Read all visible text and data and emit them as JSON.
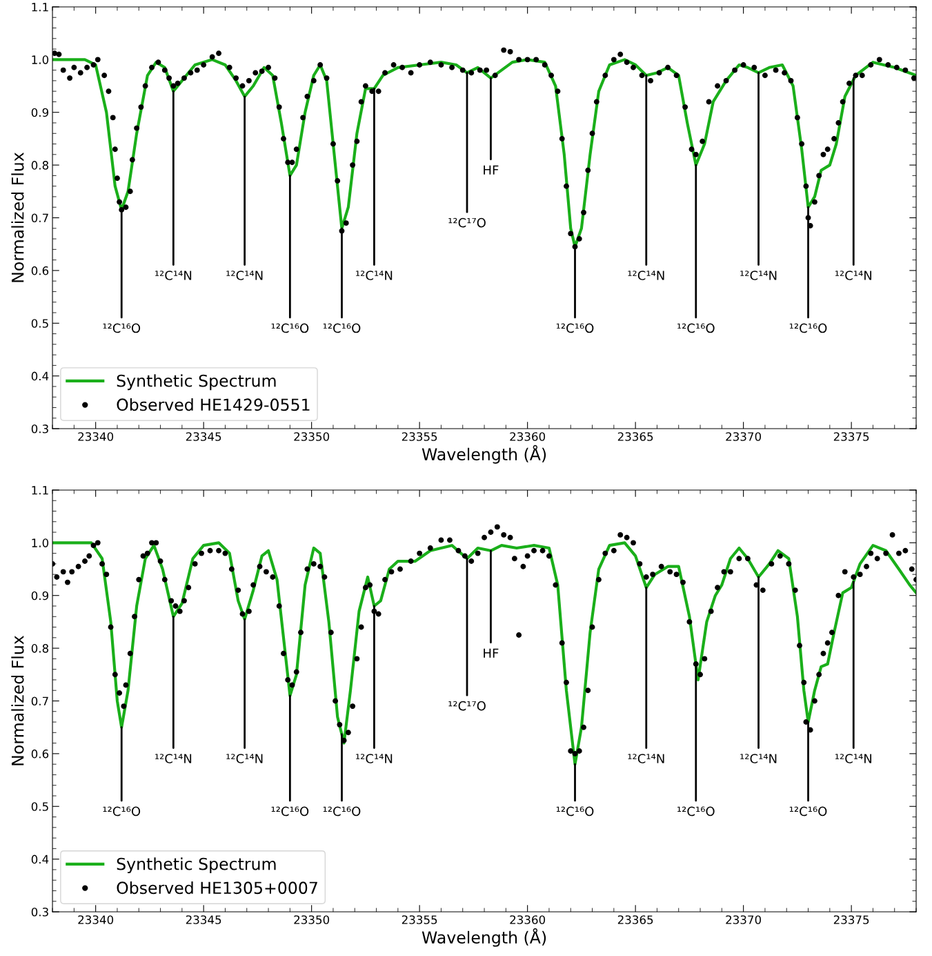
{
  "chart_data": [
    {
      "type": "line",
      "xlabel": "Wavelength (Å)",
      "ylabel": "Normalized Flux",
      "xlim": [
        23338,
        23378
      ],
      "ylim": [
        0.3,
        1.1
      ],
      "xticks": [
        23340,
        23345,
        23350,
        23355,
        23360,
        23365,
        23370,
        23375
      ],
      "yticks": [
        0.3,
        0.4,
        0.5,
        0.6,
        0.7,
        0.8,
        0.9,
        {
          "value": 1,
          "label": "1.0"
        },
        1.1
      ],
      "grid": false,
      "legend": "bottom left",
      "series": [
        {
          "name": "Synthetic Spectrum",
          "color": "#1aaf1a",
          "marker": "none",
          "line_style": "solid",
          "x": [
            23338,
            23339.5,
            23340.0,
            23340.5,
            23340.9,
            23341.2,
            23341.5,
            23341.9,
            23342.4,
            23342.8,
            23343.2,
            23343.6,
            23344.0,
            23344.6,
            23345.4,
            23346.0,
            23346.5,
            23346.9,
            23347.3,
            23347.8,
            23348.2,
            23348.6,
            23349.0,
            23349.3,
            23349.7,
            23350.1,
            23350.4,
            23350.7,
            23351.1,
            23351.4,
            23351.7,
            23352.1,
            23352.5,
            23352.9,
            23353.3,
            23354,
            23355,
            23356,
            23356.7,
            23357.2,
            23357.7,
            23358.3,
            23358.8,
            23359.3,
            23360,
            23360.8,
            23361.3,
            23361.7,
            23362.0,
            23362.2,
            23362.5,
            23362.9,
            23363.3,
            23363.8,
            23364.5,
            23365.0,
            23365.5,
            23366.0,
            23366.5,
            23367.0,
            23367.4,
            23367.8,
            23368.2,
            23368.6,
            23369.2,
            23369.8,
            23370.2,
            23370.7,
            23371.2,
            23371.8,
            23372.3,
            23372.7,
            23373.0,
            23373.3,
            23373.6,
            23374.0,
            23374.3,
            23374.7,
            23375.2,
            23376,
            23377,
            23378
          ],
          "values": [
            1.0,
            1.0,
            0.99,
            0.9,
            0.76,
            0.715,
            0.75,
            0.86,
            0.97,
            0.995,
            0.985,
            0.94,
            0.96,
            0.99,
            1.0,
            0.99,
            0.96,
            0.93,
            0.95,
            0.985,
            0.97,
            0.88,
            0.78,
            0.8,
            0.9,
            0.97,
            0.99,
            0.96,
            0.8,
            0.68,
            0.72,
            0.86,
            0.945,
            0.945,
            0.97,
            0.985,
            0.99,
            0.995,
            0.99,
            0.975,
            0.985,
            0.965,
            0.98,
            0.995,
            1.0,
            0.995,
            0.95,
            0.82,
            0.68,
            0.645,
            0.68,
            0.82,
            0.94,
            0.99,
            1.0,
            0.99,
            0.97,
            0.975,
            0.985,
            0.97,
            0.88,
            0.8,
            0.84,
            0.92,
            0.96,
            0.99,
            0.985,
            0.975,
            0.985,
            0.99,
            0.95,
            0.83,
            0.72,
            0.74,
            0.79,
            0.8,
            0.84,
            0.93,
            0.97,
            0.995,
            0.985,
            0.97
          ]
        },
        {
          "name": "Observed HE1429-0551",
          "type": "scatter",
          "color": "#000000",
          "marker": "circle",
          "x": [
            23338.1,
            23338.3,
            23338.5,
            23338.8,
            23339.0,
            23339.3,
            23339.6,
            23339.9,
            23340.1,
            23340.4,
            23340.6,
            23340.8,
            23340.9,
            23341.0,
            23341.1,
            23341.2,
            23341.4,
            23341.6,
            23341.7,
            23341.9,
            23342.1,
            23342.3,
            23342.6,
            23342.9,
            23343.2,
            23343.4,
            23343.6,
            23343.8,
            23344.1,
            23344.4,
            23344.7,
            23345.0,
            23345.4,
            23345.7,
            23346.2,
            23346.5,
            23346.8,
            23347.1,
            23347.4,
            23347.7,
            23348.0,
            23348.3,
            23348.5,
            23348.7,
            23348.9,
            23349.1,
            23349.3,
            23349.6,
            23349.8,
            23350.1,
            23350.4,
            23350.7,
            23351.0,
            23351.2,
            23351.4,
            23351.6,
            23351.9,
            23352.1,
            23352.3,
            23352.5,
            23352.8,
            23353.1,
            23353.4,
            23353.8,
            23354.2,
            23354.6,
            23355.0,
            23355.5,
            23356.0,
            23356.5,
            23357.0,
            23357.4,
            23357.8,
            23358.1,
            23358.5,
            23358.9,
            23359.2,
            23359.6,
            23360.0,
            23360.4,
            23360.8,
            23361.1,
            23361.4,
            23361.6,
            23361.8,
            23362.0,
            23362.2,
            23362.4,
            23362.6,
            23362.8,
            23363.0,
            23363.2,
            23363.6,
            23364.0,
            23364.3,
            23364.6,
            23364.9,
            23365.3,
            23365.7,
            23366.1,
            23366.5,
            23366.9,
            23367.3,
            23367.6,
            23367.8,
            23368.1,
            23368.4,
            23368.8,
            23369.2,
            23369.6,
            23370.0,
            23370.5,
            23371.0,
            23371.5,
            23371.9,
            23372.2,
            23372.5,
            23372.7,
            23372.9,
            23373.0,
            23373.1,
            23373.3,
            23373.5,
            23373.7,
            23373.9,
            23374.2,
            23374.4,
            23374.6,
            23374.9,
            23375.2,
            23375.5,
            23375.9,
            23376.3,
            23376.7,
            23377.1,
            23377.5,
            23377.9
          ],
          "values": [
            1.012,
            1.01,
            0.98,
            0.965,
            0.985,
            0.975,
            0.985,
            0.99,
            1.0,
            0.97,
            0.94,
            0.89,
            0.83,
            0.775,
            0.73,
            0.715,
            0.72,
            0.75,
            0.81,
            0.87,
            0.91,
            0.95,
            0.985,
            0.995,
            0.98,
            0.965,
            0.95,
            0.955,
            0.965,
            0.975,
            0.98,
            0.99,
            1.005,
            1.012,
            0.985,
            0.965,
            0.95,
            0.96,
            0.975,
            0.978,
            0.985,
            0.965,
            0.91,
            0.85,
            0.805,
            0.805,
            0.83,
            0.89,
            0.93,
            0.96,
            0.99,
            0.965,
            0.84,
            0.77,
            0.675,
            0.69,
            0.8,
            0.845,
            0.92,
            0.95,
            0.94,
            0.94,
            0.975,
            0.99,
            0.985,
            0.975,
            0.99,
            0.995,
            0.99,
            0.985,
            0.98,
            0.975,
            0.98,
            0.98,
            0.97,
            1.018,
            1.015,
            1.0,
            1.0,
            1.0,
            0.99,
            0.97,
            0.94,
            0.85,
            0.76,
            0.67,
            0.645,
            0.66,
            0.71,
            0.79,
            0.86,
            0.92,
            0.97,
            1.0,
            1.01,
            0.995,
            0.985,
            0.97,
            0.96,
            0.975,
            0.985,
            0.97,
            0.91,
            0.83,
            0.82,
            0.845,
            0.92,
            0.95,
            0.96,
            0.98,
            0.99,
            0.985,
            0.97,
            0.98,
            0.975,
            0.96,
            0.89,
            0.84,
            0.76,
            0.7,
            0.685,
            0.73,
            0.78,
            0.82,
            0.83,
            0.85,
            0.88,
            0.92,
            0.955,
            0.97,
            0.97,
            0.99,
            1.0,
            0.99,
            0.985,
            0.98,
            0.965
          ]
        }
      ],
      "annotations": [
        {
          "text": "¹²C¹⁶O",
          "x": 23341.2,
          "y": 0.715
        },
        {
          "text": "¹²C¹⁴N",
          "x": 23343.6,
          "y": 0.94
        },
        {
          "text": "¹²C¹⁴N",
          "x": 23346.9,
          "y": 0.93
        },
        {
          "text": "¹²C¹⁶O",
          "x": 23349.0,
          "y": 0.78
        },
        {
          "text": "¹²C¹⁶O",
          "x": 23351.4,
          "y": 0.68
        },
        {
          "text": "¹²C¹⁴N",
          "x": 23352.9,
          "y": 0.945
        },
        {
          "text": "¹²C¹⁷O",
          "x": 23357.2,
          "y": 0.975
        },
        {
          "text": "HF",
          "x": 23358.3,
          "y": 0.965
        },
        {
          "text": "¹²C¹⁶O",
          "x": 23362.2,
          "y": 0.645
        },
        {
          "text": "¹²C¹⁴N",
          "x": 23365.5,
          "y": 0.97
        },
        {
          "text": "¹²C¹⁶O",
          "x": 23367.8,
          "y": 0.8
        },
        {
          "text": "¹²C¹⁴N",
          "x": 23370.7,
          "y": 0.975
        },
        {
          "text": "¹²C¹⁶O",
          "x": 23373.0,
          "y": 0.72
        },
        {
          "text": "¹²C¹⁴N",
          "x": 23375.1,
          "y": 0.965
        }
      ]
    },
    {
      "type": "line",
      "xlabel": "Wavelength (Å)",
      "ylabel": "Normalized Flux",
      "xlim": [
        23338,
        23378
      ],
      "ylim": [
        0.3,
        1.1
      ],
      "xticks": [
        23340,
        23345,
        23350,
        23355,
        23360,
        23365,
        23370,
        23375
      ],
      "yticks": [
        0.3,
        0.4,
        0.5,
        0.6,
        0.7,
        0.8,
        0.9,
        {
          "value": 1,
          "label": "1.0"
        },
        1.1
      ],
      "grid": false,
      "legend": "bottom left",
      "series": [
        {
          "name": "Synthetic Spectrum",
          "color": "#1aaf1a",
          "marker": "none",
          "line_style": "solid",
          "x": [
            23338,
            23339.8,
            23340.3,
            23340.7,
            23341.0,
            23341.2,
            23341.5,
            23341.9,
            23342.3,
            23342.7,
            23343.1,
            23343.6,
            23344.0,
            23344.5,
            23345.0,
            23345.7,
            23346.2,
            23346.6,
            23346.9,
            23347.3,
            23347.7,
            23348.0,
            23348.4,
            23348.7,
            23349.0,
            23349.3,
            23349.7,
            23350.1,
            23350.4,
            23350.8,
            23351.2,
            23351.5,
            23351.8,
            23352.2,
            23352.6,
            23352.9,
            23353.2,
            23353.6,
            23354.0,
            23354.8,
            23355.5,
            23356.5,
            23357.2,
            23357.7,
            23358.3,
            23358.8,
            23359.5,
            23360.3,
            23361.0,
            23361.4,
            23361.8,
            23362.2,
            23362.5,
            23362.9,
            23363.3,
            23363.8,
            23364.5,
            23365.0,
            23365.5,
            23365.9,
            23366.5,
            23367.0,
            23367.5,
            23367.9,
            23368.3,
            23368.7,
            23369.0,
            23369.4,
            23369.8,
            23370.2,
            23370.7,
            23371.2,
            23371.6,
            23372.1,
            23372.5,
            23372.8,
            23373.0,
            23373.3,
            23373.6,
            23373.9,
            23374.2,
            23374.6,
            23375.0,
            23375.4,
            23376.0,
            23376.6,
            23377.2,
            23377.7,
            23378
          ],
          "values": [
            1.0,
            1.0,
            0.97,
            0.85,
            0.7,
            0.65,
            0.72,
            0.88,
            0.97,
            0.995,
            0.95,
            0.86,
            0.885,
            0.97,
            0.995,
            1.0,
            0.98,
            0.89,
            0.855,
            0.91,
            0.975,
            0.985,
            0.93,
            0.82,
            0.71,
            0.75,
            0.92,
            0.99,
            0.98,
            0.85,
            0.67,
            0.62,
            0.72,
            0.87,
            0.935,
            0.88,
            0.89,
            0.95,
            0.965,
            0.965,
            0.985,
            0.995,
            0.97,
            0.99,
            0.985,
            0.995,
            0.99,
            0.995,
            0.99,
            0.92,
            0.72,
            0.58,
            0.65,
            0.83,
            0.95,
            0.995,
            1.0,
            0.975,
            0.915,
            0.94,
            0.955,
            0.955,
            0.86,
            0.74,
            0.85,
            0.9,
            0.92,
            0.97,
            0.99,
            0.97,
            0.935,
            0.96,
            0.985,
            0.97,
            0.86,
            0.72,
            0.66,
            0.72,
            0.765,
            0.77,
            0.83,
            0.905,
            0.915,
            0.96,
            0.995,
            0.985,
            0.95,
            0.92,
            0.905
          ]
        },
        {
          "name": "Observed HE1305+0007",
          "type": "scatter",
          "color": "#000000",
          "marker": "circle",
          "x": [
            23338.0,
            23338.2,
            23338.5,
            23338.7,
            23338.9,
            23339.2,
            23339.5,
            23339.7,
            23339.9,
            23340.1,
            23340.3,
            23340.5,
            23340.7,
            23340.9,
            23341.1,
            23341.3,
            23341.4,
            23341.6,
            23341.8,
            23342.0,
            23342.2,
            23342.4,
            23342.6,
            23342.8,
            23343.0,
            23343.2,
            23343.5,
            23343.7,
            23343.9,
            23344.1,
            23344.3,
            23344.6,
            23344.9,
            23345.3,
            23345.7,
            23346.0,
            23346.3,
            23346.6,
            23346.8,
            23347.1,
            23347.3,
            23347.6,
            23347.9,
            23348.2,
            23348.5,
            23348.7,
            23348.9,
            23349.1,
            23349.3,
            23349.5,
            23349.8,
            23350.1,
            23350.4,
            23350.6,
            23350.9,
            23351.1,
            23351.3,
            23351.5,
            23351.7,
            23351.9,
            23352.1,
            23352.3,
            23352.5,
            23352.7,
            23352.9,
            23353.1,
            23353.4,
            23353.7,
            23354.1,
            23354.6,
            23355.0,
            23355.5,
            23356.0,
            23356.4,
            23356.8,
            23357.1,
            23357.4,
            23357.7,
            23358.0,
            23358.3,
            23358.6,
            23358.9,
            23359.2,
            23359.4,
            23359.6,
            23359.8,
            23360.0,
            23360.3,
            23360.7,
            23361.0,
            23361.3,
            23361.6,
            23361.8,
            23362.0,
            23362.2,
            23362.4,
            23362.6,
            23362.8,
            23363.0,
            23363.3,
            23363.6,
            23364.0,
            23364.3,
            23364.6,
            23364.9,
            23365.2,
            23365.5,
            23365.8,
            23366.2,
            23366.6,
            23366.9,
            23367.2,
            23367.5,
            23367.8,
            23368.0,
            23368.2,
            23368.5,
            23368.8,
            23369.1,
            23369.4,
            23369.8,
            23370.2,
            23370.6,
            23370.9,
            23371.3,
            23371.7,
            23372.1,
            23372.4,
            23372.6,
            23372.8,
            23372.9,
            23373.1,
            23373.3,
            23373.5,
            23373.7,
            23373.9,
            23374.1,
            23374.4,
            23374.7,
            23375.1,
            23375.4,
            23375.7,
            23375.9,
            23376.2,
            23376.6,
            23376.9,
            23377.2,
            23377.5,
            23377.8,
            23378.0
          ],
          "values": [
            0.96,
            0.935,
            0.945,
            0.925,
            0.945,
            0.955,
            0.965,
            0.975,
            0.995,
            1.0,
            0.96,
            0.94,
            0.84,
            0.75,
            0.715,
            0.69,
            0.73,
            0.79,
            0.86,
            0.93,
            0.975,
            0.98,
            1.0,
            1.0,
            0.965,
            0.93,
            0.89,
            0.88,
            0.87,
            0.89,
            0.915,
            0.96,
            0.98,
            0.985,
            0.985,
            0.98,
            0.95,
            0.91,
            0.865,
            0.87,
            0.92,
            0.955,
            0.945,
            0.935,
            0.88,
            0.79,
            0.74,
            0.73,
            0.755,
            0.83,
            0.95,
            0.96,
            0.955,
            0.935,
            0.83,
            0.7,
            0.655,
            0.625,
            0.64,
            0.69,
            0.78,
            0.84,
            0.915,
            0.92,
            0.87,
            0.865,
            0.93,
            0.945,
            0.95,
            0.965,
            0.98,
            0.99,
            1.005,
            1.005,
            0.985,
            0.975,
            0.965,
            0.98,
            1.01,
            1.02,
            1.03,
            1.015,
            1.01,
            0.97,
            0.825,
            0.955,
            0.975,
            0.985,
            0.985,
            0.975,
            0.92,
            0.81,
            0.735,
            0.605,
            0.6,
            0.605,
            0.65,
            0.72,
            0.84,
            0.93,
            0.98,
            0.985,
            1.015,
            1.01,
            1.0,
            0.96,
            0.935,
            0.94,
            0.955,
            0.945,
            0.94,
            0.925,
            0.85,
            0.77,
            0.75,
            0.78,
            0.87,
            0.915,
            0.945,
            0.945,
            0.97,
            0.97,
            0.92,
            0.91,
            0.96,
            0.975,
            0.96,
            0.91,
            0.805,
            0.735,
            0.66,
            0.645,
            0.7,
            0.75,
            0.79,
            0.81,
            0.83,
            0.9,
            0.945,
            0.935,
            0.94,
            0.955,
            0.98,
            0.97,
            0.98,
            1.015,
            0.98,
            0.985,
            0.95,
            0.93
          ]
        }
      ],
      "annotations": [
        {
          "text": "¹²C¹⁶O",
          "x": 23341.2,
          "y": 0.65
        },
        {
          "text": "¹²C¹⁴N",
          "x": 23343.6,
          "y": 0.86
        },
        {
          "text": "¹²C¹⁴N",
          "x": 23346.9,
          "y": 0.855
        },
        {
          "text": "¹²C¹⁶O",
          "x": 23349.0,
          "y": 0.71
        },
        {
          "text": "¹²C¹⁶O",
          "x": 23351.4,
          "y": 0.637
        },
        {
          "text": "¹²C¹⁴N",
          "x": 23352.9,
          "y": 0.88
        },
        {
          "text": "¹²C¹⁷O",
          "x": 23357.2,
          "y": 0.97
        },
        {
          "text": "HF",
          "x": 23358.3,
          "y": 0.985
        },
        {
          "text": "¹²C¹⁶O",
          "x": 23362.2,
          "y": 0.58
        },
        {
          "text": "¹²C¹⁴N",
          "x": 23365.5,
          "y": 0.915
        },
        {
          "text": "¹²C¹⁶O",
          "x": 23367.8,
          "y": 0.77
        },
        {
          "text": "¹²C¹⁴N",
          "x": 23370.7,
          "y": 0.935
        },
        {
          "text": "¹²C¹⁶O",
          "x": 23373.0,
          "y": 0.66
        },
        {
          "text": "¹²C¹⁴N",
          "x": 23375.1,
          "y": 0.926
        }
      ]
    }
  ]
}
